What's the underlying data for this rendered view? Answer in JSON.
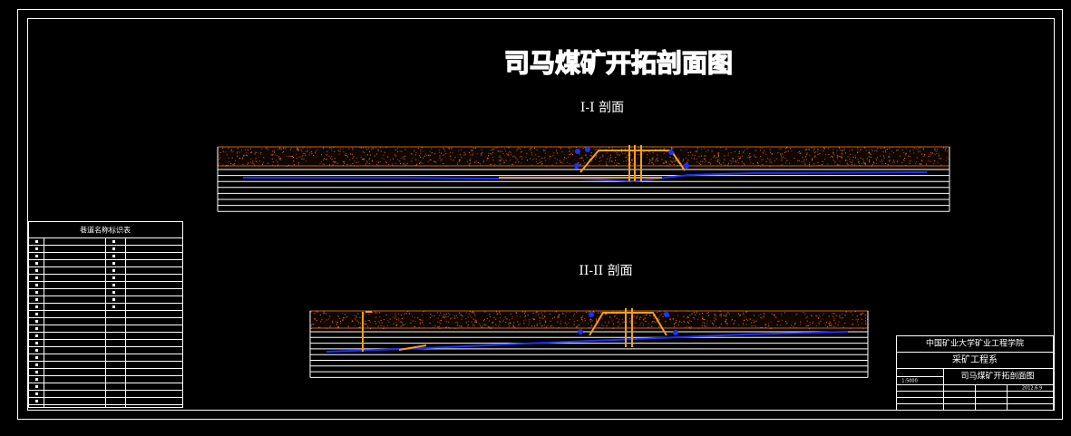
{
  "drawing": {
    "title": "司马煤矿开拓剖面图"
  },
  "sections": [
    {
      "label": "I-I 剖面"
    },
    {
      "label": "II-II 剖面"
    }
  ],
  "legend_table": {
    "title": "巷道名称标识表"
  },
  "title_block": {
    "school": "中国矿业大学矿业工程学院",
    "department": "采矿工程系",
    "drawing_name": "司马煤矿开拓剖面图",
    "scale": "1:5000",
    "date": "2012.6.9"
  }
}
